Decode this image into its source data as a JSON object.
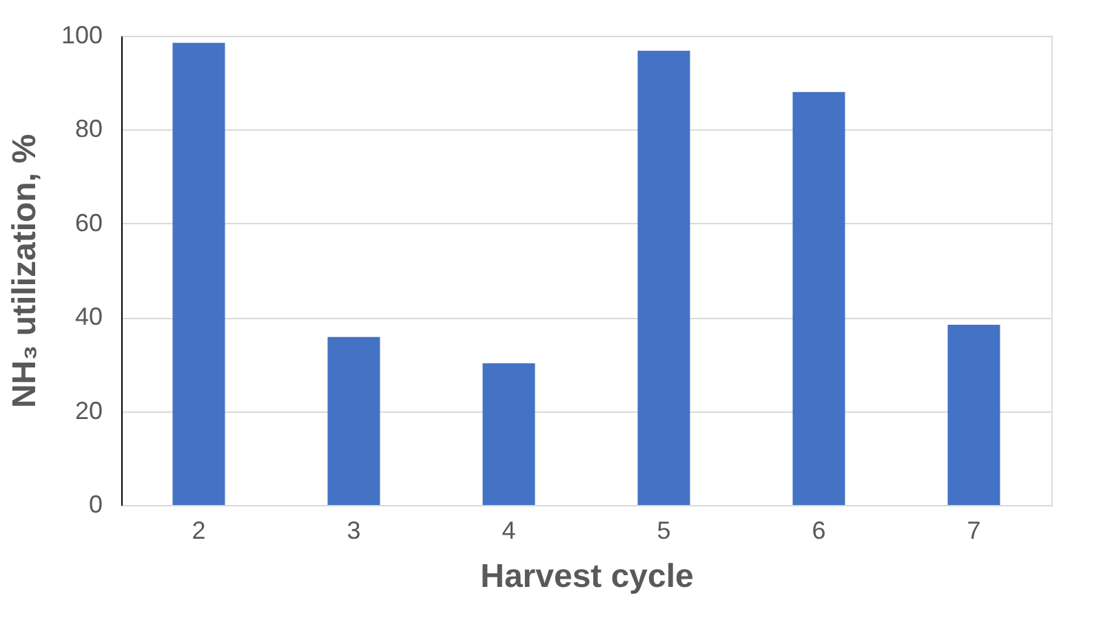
{
  "chart_data": {
    "type": "bar",
    "xlabel": "Harvest cycle",
    "ylabel": "NH₃ utilization, %",
    "categories": [
      "2",
      "3",
      "4",
      "5",
      "6",
      "7"
    ],
    "values": [
      98.5,
      35.8,
      30.2,
      96.8,
      88,
      38.4
    ],
    "color": "#4472c4",
    "ylim": [
      0,
      100
    ],
    "yticks": [
      0,
      20,
      40,
      60,
      80,
      100
    ],
    "grid": "y"
  }
}
